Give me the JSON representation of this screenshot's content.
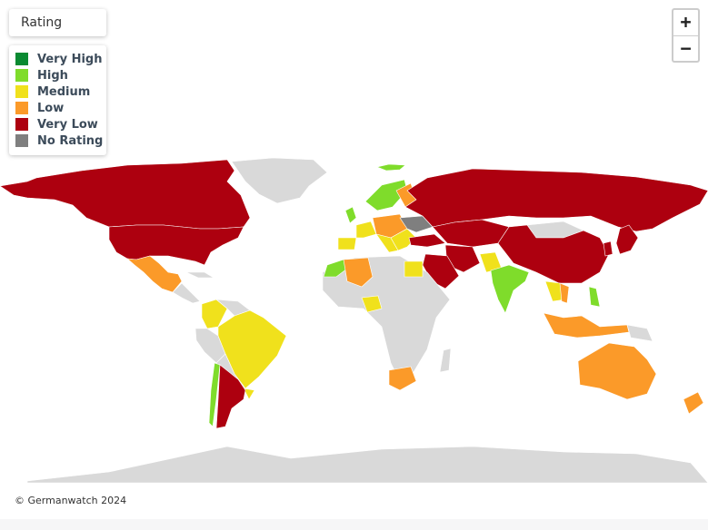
{
  "map": {
    "colors": {
      "very_high": "#0a8a32",
      "high": "#7fdc2b",
      "medium": "#f0e11c",
      "low": "#fb9a29",
      "very_low": "#ad000f",
      "no_rating": "#7f7f7f",
      "no_data": "#d9d9d9",
      "border": "#ffffff"
    }
  },
  "rating_title": "Rating",
  "legend": [
    {
      "label": "Very High",
      "color": "#0a8a32"
    },
    {
      "label": "High",
      "color": "#7fdc2b"
    },
    {
      "label": "Medium",
      "color": "#f0e11c"
    },
    {
      "label": "Low",
      "color": "#fb9a29"
    },
    {
      "label": "Very Low",
      "color": "#ad000f"
    },
    {
      "label": "No Rating",
      "color": "#7f7f7f"
    }
  ],
  "zoom": {
    "in_label": "+",
    "out_label": "−"
  },
  "attribution": "© Germanwatch 2024"
}
